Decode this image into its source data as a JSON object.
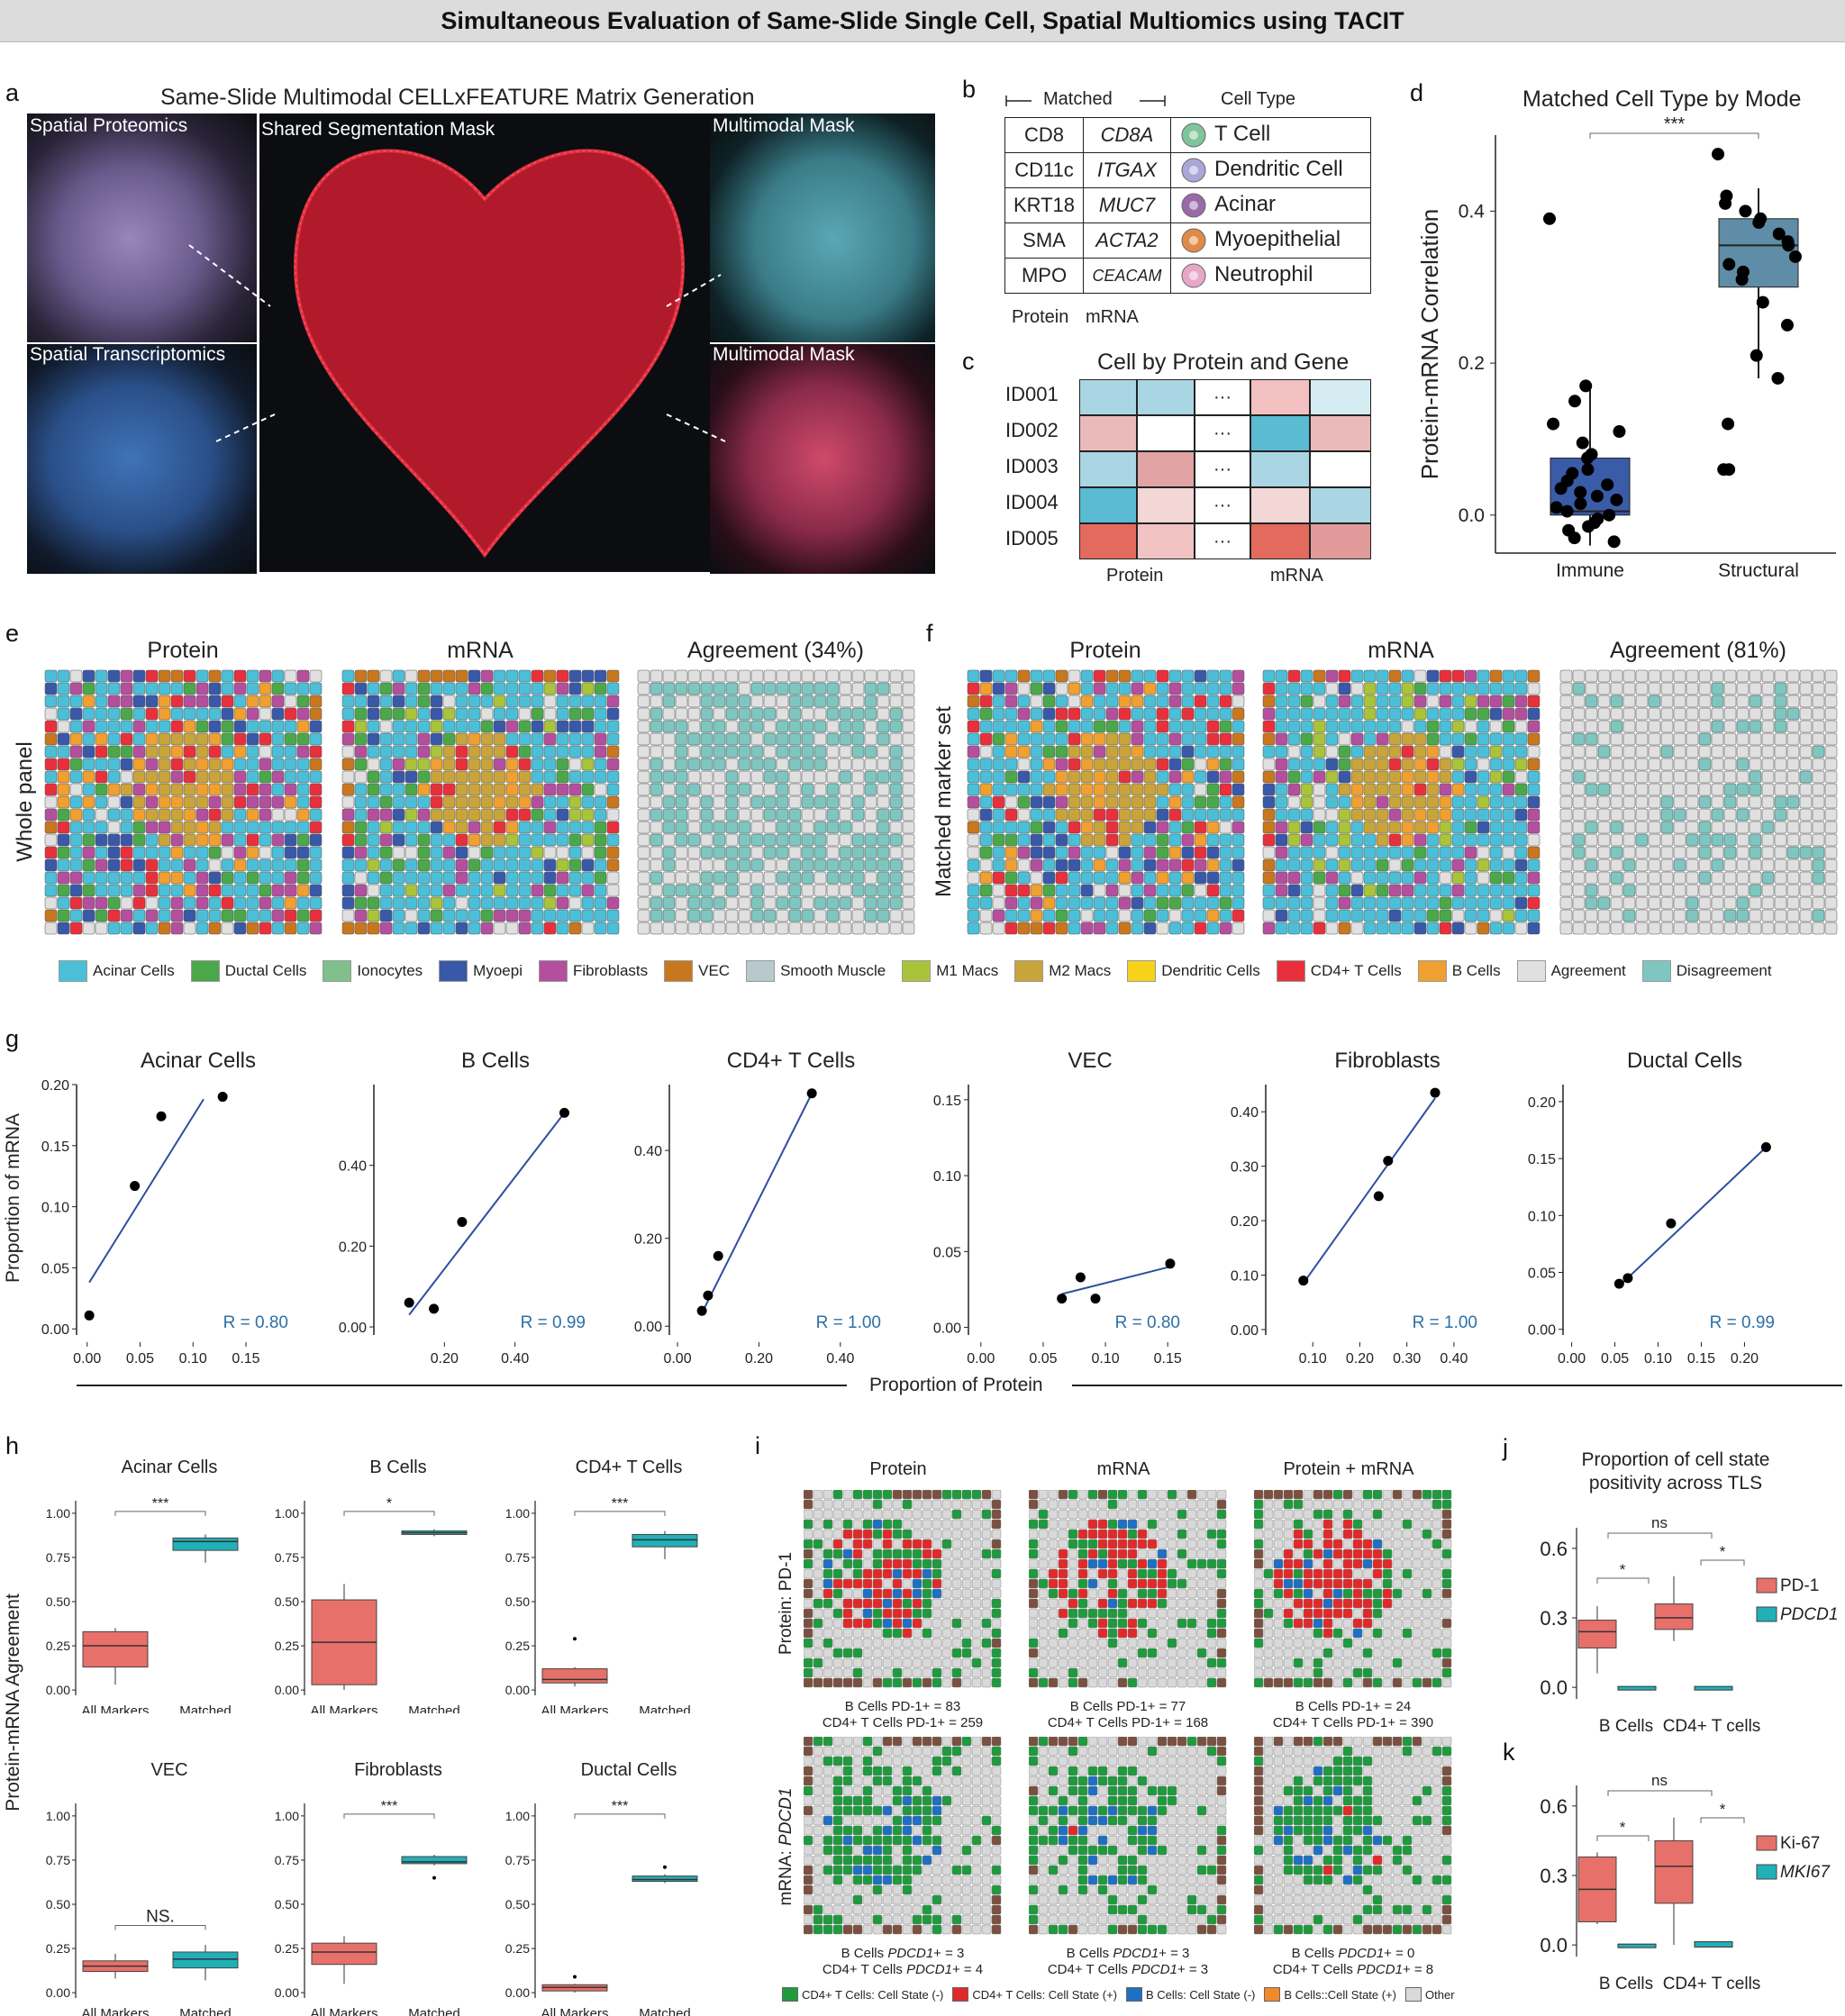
{
  "banner": "Simultaneous Evaluation of Same-Slide Single Cell, Spatial Multiomics using TACIT",
  "labels": {
    "a": "a",
    "b": "b",
    "c": "c",
    "d": "d",
    "e": "e",
    "f": "f",
    "g": "g",
    "h": "h",
    "i": "i",
    "j": "j",
    "k": "k"
  },
  "panel_a": {
    "title": "Same-Slide Multimodal CELLxFEATURE Matrix Generation",
    "spatial_proteomics": "Spatial Proteomics",
    "spatial_transcriptomics": "Spatial Transcriptomics",
    "shared_mask": "Shared Segmentation Mask",
    "multimodal_mask_1": "Multimodal Mask",
    "multimodal_mask_2": "Multimodal Mask"
  },
  "panel_b": {
    "matched_header": "Matched",
    "celltype_header": "Cell Type",
    "rows": [
      {
        "protein": "CD8",
        "mrna": "CD8A",
        "cell": "T Cell",
        "color": "#7fc49a"
      },
      {
        "protein": "CD11c",
        "mrna": "ITGAX",
        "cell": "Dendritic Cell",
        "color": "#a9a7d6"
      },
      {
        "protein": "KRT18",
        "mrna": "MUC7",
        "cell": "Acinar",
        "color": "#9a6aa8"
      },
      {
        "protein": "SMA",
        "mrna": "ACTA2",
        "cell": "Myoepithelial",
        "color": "#e08a4a"
      },
      {
        "protein": "MPO",
        "mrna": "CEACAM",
        "cell": "Neutrophil",
        "color": "#e7a7c8"
      }
    ],
    "footer_protein": "Protein",
    "footer_mrna": "mRNA"
  },
  "panel_c": {
    "title": "Cell by Protein and Gene",
    "ids": [
      "ID001",
      "ID002",
      "ID003",
      "ID004",
      "ID005"
    ],
    "ellipsis": "···",
    "footer_protein": "Protein",
    "footer_mrna": "mRNA",
    "cells": [
      [
        "#a9d6e2",
        "#a9d6e2",
        "#f2c0c0",
        "#d4ecf2"
      ],
      [
        "#eab9b9",
        "#ffffff",
        "#5bbbd2",
        "#eab9b9"
      ],
      [
        "#a9d6e2",
        "#e1a3a3",
        "#a9d6e2",
        "#ffffff"
      ],
      [
        "#5bbbd2",
        "#f3d6d6",
        "#f3d6d6",
        "#a9d6e2"
      ],
      [
        "#e26a5e",
        "#f1c3c3",
        "#e26a5e",
        "#e09a9a"
      ]
    ]
  },
  "panel_d": {
    "title": "Matched Cell Type by Mode",
    "ylabel": "Protein-mRNA Correlation",
    "sig": "***",
    "chart_data": {
      "type": "box",
      "categories": [
        "Immune",
        "Structural"
      ],
      "yticks": [
        "0.0",
        "0.2",
        "0.4"
      ],
      "ylim": [
        -0.05,
        0.5
      ],
      "boxes": [
        {
          "name": "Immune",
          "q1": 0.0,
          "median": 0.005,
          "q3": 0.075,
          "low": -0.04,
          "high": 0.17,
          "color": "#3a5ca8"
        },
        {
          "name": "Structural",
          "q1": 0.3,
          "median": 0.355,
          "q3": 0.39,
          "low": 0.18,
          "high": 0.43,
          "color": "#5f8ca6"
        }
      ],
      "points": {
        "Immune": [
          0.39,
          0.17,
          0.15,
          0.12,
          0.11,
          0.095,
          0.08,
          0.075,
          0.06,
          0.055,
          0.045,
          0.04,
          0.035,
          0.03,
          0.025,
          0.02,
          0.015,
          0.01,
          0.005,
          0.0,
          -0.005,
          -0.01,
          -0.015,
          -0.02,
          -0.03,
          -0.035
        ],
        "Structural": [
          0.475,
          0.42,
          0.41,
          0.4,
          0.39,
          0.385,
          0.37,
          0.36,
          0.355,
          0.34,
          0.33,
          0.32,
          0.31,
          0.28,
          0.25,
          0.21,
          0.18,
          0.12,
          0.06,
          0.06
        ]
      }
    }
  },
  "panel_e": {
    "titles": [
      "Protein",
      "mRNA",
      "Agreement (34%)"
    ],
    "row_label": "Whole panel"
  },
  "panel_f": {
    "titles": [
      "Protein",
      "mRNA",
      "Agreement (81%)"
    ],
    "row_label": "Matched marker set"
  },
  "legend_ef": [
    {
      "label": "Acinar Cells",
      "color": "#4cbfd8"
    },
    {
      "label": "Ductal Cells",
      "color": "#4aa84a"
    },
    {
      "label": "Ionocytes",
      "color": "#7fc08c"
    },
    {
      "label": "Myoepi",
      "color": "#3a58a8"
    },
    {
      "label": "Fibroblasts",
      "color": "#b44f9e"
    },
    {
      "label": "VEC",
      "color": "#c8771f"
    },
    {
      "label": "Smooth Muscle",
      "color": "#b9c8cc"
    },
    {
      "label": "M1 Macs",
      "color": "#a9c43a"
    },
    {
      "label": "M2 Macs",
      "color": "#c9a43a"
    },
    {
      "label": "Dendritic Cells",
      "color": "#f7d21a"
    },
    {
      "label": "CD4+ T Cells",
      "color": "#e8303c"
    },
    {
      "label": "B Cells",
      "color": "#f0a030"
    },
    {
      "label": "Agreement",
      "color": "#e0e0e0"
    },
    {
      "label": "Disagreement",
      "color": "#7fc6c0"
    }
  ],
  "panel_g": {
    "ylabel": "Proportion of mRNA",
    "xlabel": "Proportion of Protein",
    "chart_data": [
      {
        "type": "scatter",
        "title": "Acinar Cells",
        "xlim": [
          -0.01,
          0.19
        ],
        "ylim": [
          -0.005,
          0.2
        ],
        "xticks": [
          0.0,
          0.05,
          0.1,
          0.15
        ],
        "xticklabels": [
          "0.00",
          "0.05",
          "0.10",
          "0.15"
        ],
        "yticks": [
          0.0,
          0.05,
          0.1,
          0.15,
          0.2
        ],
        "yticklabels": [
          "0.00",
          "0.05",
          "0.10",
          "0.15",
          "0.20"
        ],
        "points": [
          [
            0.002,
            0.011
          ],
          [
            0.045,
            0.117
          ],
          [
            0.07,
            0.174
          ],
          [
            0.128,
            0.19
          ]
        ],
        "fit": [
          [
            0.002,
            0.038
          ],
          [
            0.11,
            0.188
          ]
        ],
        "r": "R = 0.80"
      },
      {
        "type": "scatter",
        "title": "B Cells",
        "xlim": [
          0.0,
          0.6
        ],
        "ylim": [
          -0.02,
          0.6
        ],
        "xticks": [
          0.2,
          0.4
        ],
        "xticklabels": [
          "0.20",
          "0.40"
        ],
        "yticks": [
          0.0,
          0.2,
          0.4
        ],
        "yticklabels": [
          "0.00",
          "0.20",
          "0.40"
        ],
        "points": [
          [
            0.1,
            0.06
          ],
          [
            0.17,
            0.045
          ],
          [
            0.25,
            0.26
          ],
          [
            0.54,
            0.53
          ]
        ],
        "fit": [
          [
            0.1,
            0.03
          ],
          [
            0.54,
            0.53
          ]
        ],
        "r": "R = 0.99"
      },
      {
        "type": "scatter",
        "title": "CD4+ T Cells",
        "xlim": [
          -0.02,
          0.5
        ],
        "ylim": [
          -0.02,
          0.55
        ],
        "xticks": [
          0.0,
          0.2,
          0.4
        ],
        "xticklabels": [
          "0.00",
          "0.20",
          "0.40"
        ],
        "yticks": [
          0.0,
          0.2,
          0.4
        ],
        "yticklabels": [
          "0.00",
          "0.20",
          "0.40"
        ],
        "points": [
          [
            0.06,
            0.035
          ],
          [
            0.075,
            0.07
          ],
          [
            0.1,
            0.16
          ],
          [
            0.33,
            0.53
          ]
        ],
        "fit": [
          [
            0.06,
            0.03
          ],
          [
            0.33,
            0.53
          ]
        ],
        "r": "R = 1.00"
      },
      {
        "type": "scatter",
        "title": "VEC",
        "xlim": [
          -0.01,
          0.16
        ],
        "ylim": [
          -0.005,
          0.16
        ],
        "xticks": [
          0.0,
          0.05,
          0.1,
          0.15
        ],
        "xticklabels": [
          "0.00",
          "0.05",
          "0.10",
          "0.15"
        ],
        "yticks": [
          0.0,
          0.05,
          0.1,
          0.15
        ],
        "yticklabels": [
          "0.00",
          "0.05",
          "0.10",
          "0.15"
        ],
        "points": [
          [
            0.065,
            0.019
          ],
          [
            0.08,
            0.033
          ],
          [
            0.092,
            0.019
          ],
          [
            0.152,
            0.042
          ]
        ],
        "fit": [
          [
            0.065,
            0.022
          ],
          [
            0.152,
            0.04
          ]
        ],
        "r": "R = 0.80"
      },
      {
        "type": "scatter",
        "title": "Fibroblasts",
        "xlim": [
          0.0,
          0.45
        ],
        "ylim": [
          -0.01,
          0.45
        ],
        "xticks": [
          0.1,
          0.2,
          0.3,
          0.4
        ],
        "xticklabels": [
          "0.10",
          "0.20",
          "0.30",
          "0.40"
        ],
        "yticks": [
          0.0,
          0.1,
          0.2,
          0.3,
          0.4
        ],
        "yticklabels": [
          "0.00",
          "0.10",
          "0.20",
          "0.30",
          "0.40"
        ],
        "points": [
          [
            0.08,
            0.09
          ],
          [
            0.24,
            0.245
          ],
          [
            0.26,
            0.31
          ],
          [
            0.36,
            0.435
          ]
        ],
        "fit": [
          [
            0.08,
            0.085
          ],
          [
            0.36,
            0.425
          ]
        ],
        "r": "R = 1.00"
      },
      {
        "type": "scatter",
        "title": "Ductal Cells",
        "xlim": [
          -0.01,
          0.235
        ],
        "ylim": [
          -0.005,
          0.215
        ],
        "xticks": [
          0.0,
          0.05,
          0.1,
          0.15,
          0.2
        ],
        "xticklabels": [
          "0.00",
          "0.05",
          "0.10",
          "0.15",
          "0.20"
        ],
        "yticks": [
          0.0,
          0.05,
          0.1,
          0.15,
          0.2
        ],
        "yticklabels": [
          "0.00",
          "0.05",
          "0.10",
          "0.15",
          "0.20"
        ],
        "points": [
          [
            0.055,
            0.04
          ],
          [
            0.065,
            0.045
          ],
          [
            0.115,
            0.093
          ],
          [
            0.225,
            0.16
          ]
        ],
        "fit": [
          [
            0.055,
            0.038
          ],
          [
            0.225,
            0.16
          ]
        ],
        "r": "R = 0.99"
      }
    ]
  },
  "panel_h": {
    "ylabel": "Protein-mRNA Agreement",
    "chart_data": [
      {
        "type": "box",
        "title": "Acinar Cells",
        "sig": "***",
        "categories": [
          "All Markers",
          "Matched"
        ],
        "boxes": [
          {
            "q1": 0.13,
            "median": 0.25,
            "q3": 0.33,
            "low": 0.03,
            "high": 0.35,
            "color": "#e8706a"
          },
          {
            "q1": 0.79,
            "median": 0.84,
            "q3": 0.86,
            "low": 0.72,
            "high": 0.88,
            "color": "#22b0b8"
          }
        ],
        "outliers": []
      },
      {
        "type": "box",
        "title": "B Cells",
        "sig": "*",
        "categories": [
          "All Markers",
          "Matched"
        ],
        "boxes": [
          {
            "q1": 0.03,
            "median": 0.27,
            "q3": 0.51,
            "low": 0.0,
            "high": 0.6,
            "color": "#e8706a"
          },
          {
            "q1": 0.88,
            "median": 0.89,
            "q3": 0.9,
            "low": 0.87,
            "high": 0.91,
            "color": "#22b0b8"
          }
        ],
        "outliers": []
      },
      {
        "type": "box",
        "title": "CD4+ T Cells",
        "sig": "***",
        "categories": [
          "All Markers",
          "Matched"
        ],
        "boxes": [
          {
            "q1": 0.04,
            "median": 0.06,
            "q3": 0.12,
            "low": 0.02,
            "high": 0.13,
            "color": "#e8706a"
          },
          {
            "q1": 0.81,
            "median": 0.85,
            "q3": 0.88,
            "low": 0.74,
            "high": 0.9,
            "color": "#22b0b8"
          }
        ],
        "outliers": [
          [
            0,
            0.29
          ]
        ]
      },
      {
        "type": "box",
        "title": "VEC",
        "sig": "NS.",
        "categories": [
          "All Markers",
          "Matched"
        ],
        "boxes": [
          {
            "q1": 0.12,
            "median": 0.15,
            "q3": 0.18,
            "low": 0.08,
            "high": 0.22,
            "color": "#e8706a"
          },
          {
            "q1": 0.14,
            "median": 0.19,
            "q3": 0.23,
            "low": 0.07,
            "high": 0.27,
            "color": "#22b0b8"
          }
        ],
        "outliers": []
      },
      {
        "type": "box",
        "title": "Fibroblasts",
        "sig": "***",
        "categories": [
          "All Markers",
          "Matched"
        ],
        "boxes": [
          {
            "q1": 0.16,
            "median": 0.23,
            "q3": 0.28,
            "low": 0.05,
            "high": 0.32,
            "color": "#e8706a"
          },
          {
            "q1": 0.73,
            "median": 0.74,
            "q3": 0.77,
            "low": 0.72,
            "high": 0.78,
            "color": "#22b0b8"
          }
        ],
        "outliers": [
          [
            1,
            0.65
          ]
        ]
      },
      {
        "type": "box",
        "title": "Ductal Cells",
        "sig": "***",
        "categories": [
          "All Markers",
          "Matched"
        ],
        "boxes": [
          {
            "q1": 0.01,
            "median": 0.03,
            "q3": 0.045,
            "low": 0.0,
            "high": 0.05,
            "color": "#e8706a"
          },
          {
            "q1": 0.63,
            "median": 0.64,
            "q3": 0.66,
            "low": 0.62,
            "high": 0.67,
            "color": "#22b0b8"
          }
        ],
        "outliers": [
          [
            0,
            0.09
          ],
          [
            1,
            0.71
          ]
        ]
      }
    ],
    "yticklabels": [
      "0.00",
      "0.25",
      "0.50",
      "0.75",
      "1.00"
    ]
  },
  "panel_i": {
    "col_titles": [
      "Protein",
      "mRNA",
      "Protein + mRNA"
    ],
    "row1_label": "Protein: PD-1",
    "row2_label_prefix": "mRNA: ",
    "row2_label_gene": "PDCD1",
    "row1_captions": [
      [
        "B Cells PD-1+ = 83",
        "CD4+ T Cells PD-1+ = 259"
      ],
      [
        "B Cells PD-1+ = 77",
        "CD4+ T Cells PD-1+ = 168"
      ],
      [
        "B Cells PD-1+ = 24",
        "CD4+ T Cells PD-1+ = 390"
      ]
    ],
    "row2_captions": [
      [
        "B Cells PDCD1+ = 3",
        "CD4+ T Cells PDCD1+ = 4"
      ],
      [
        "B Cells PDCD1+ = 3",
        "CD4+ T Cells PDCD1+ = 3"
      ],
      [
        "B Cells PDCD1+ = 0",
        "CD4+ T Cells PDCD1+ = 8"
      ]
    ],
    "legend": [
      {
        "label": "CD4+ T Cells: Cell State (-)",
        "color": "#1f9a3e"
      },
      {
        "label": "CD4+ T Cells: Cell State (+)",
        "color": "#e02a2a"
      },
      {
        "label": "B Cells: Cell State (-)",
        "color": "#1f6fc2"
      },
      {
        "label": "B Cells::Cell State (+)",
        "color": "#f08a2a"
      },
      {
        "label": "Other",
        "color": "#d9d9d9"
      }
    ]
  },
  "panel_j": {
    "title_line1": "Proportion of cell state",
    "title_line2": "positivity across TLS",
    "chart_data": {
      "type": "box",
      "categories": [
        "B Cells",
        "CD4+ T cells"
      ],
      "yticklabels": [
        "0.0",
        "0.3",
        "0.6"
      ],
      "sig_top": "ns",
      "sig_left": "*",
      "sig_right": "*",
      "series": [
        {
          "name": "PD-1",
          "color": "#e8706a",
          "boxes": [
            {
              "q1": 0.17,
              "median": 0.24,
              "q3": 0.29,
              "low": 0.06,
              "high": 0.35
            },
            {
              "q1": 0.25,
              "median": 0.3,
              "q3": 0.36,
              "low": 0.2,
              "high": 0.48
            }
          ]
        },
        {
          "name": "PDCD1",
          "color": "#22b0b8",
          "boxes": [
            {
              "q1": 0.0,
              "median": 0.0,
              "q3": 0.0,
              "low": 0.0,
              "high": 0.0
            },
            {
              "q1": 0.0,
              "median": 0.0,
              "q3": 0.0,
              "low": 0.0,
              "high": 0.0
            }
          ]
        }
      ]
    }
  },
  "panel_k": {
    "chart_data": {
      "type": "box",
      "categories": [
        "B Cells",
        "CD4+ T cells"
      ],
      "yticklabels": [
        "0.0",
        "0.3",
        "0.6"
      ],
      "sig_top": "ns",
      "sig_left": "*",
      "sig_right": "*",
      "series": [
        {
          "name": "Ki-67",
          "color": "#e8706a",
          "boxes": [
            {
              "q1": 0.1,
              "median": 0.24,
              "q3": 0.38,
              "low": 0.09,
              "high": 0.4
            },
            {
              "q1": 0.18,
              "median": 0.34,
              "q3": 0.45,
              "low": 0.0,
              "high": 0.55
            }
          ]
        },
        {
          "name": "MKI67",
          "color": "#22b0b8",
          "boxes": [
            {
              "q1": 0.0,
              "median": 0.0,
              "q3": 0.0,
              "low": 0.0,
              "high": 0.0
            },
            {
              "q1": -0.005,
              "median": 0.005,
              "q3": 0.01,
              "low": -0.005,
              "high": 0.012
            }
          ]
        }
      ]
    }
  }
}
